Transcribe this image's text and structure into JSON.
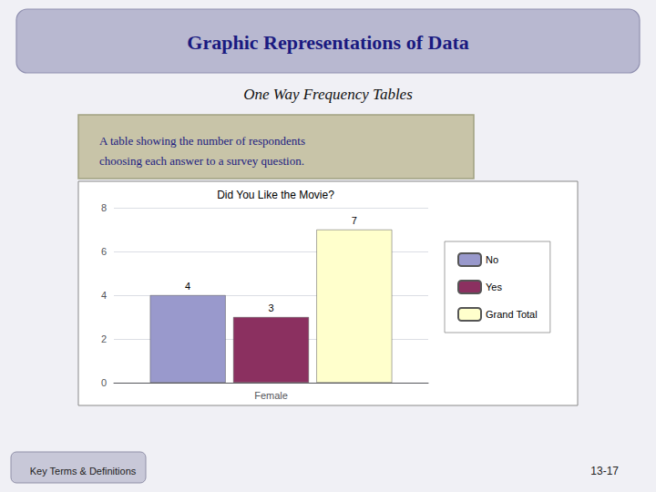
{
  "chart_data": {
    "type": "bar",
    "title": "Graphic Representations of Data",
    "subtitle": "One Way Frequency Tables",
    "annotations": [
      "Did You Like the Movie?",
      "A table showing the number of respondents\nchoosing each answer to a survey question.",
      "Key Terms & Definitions",
      "13-17"
    ],
    "categories": [
      "Female"
    ],
    "series": [
      {
        "name": "No",
        "color": "#9999cc",
        "values": [
          4
        ]
      },
      {
        "name": "Yes",
        "color": "#8b3060",
        "values": [
          3
        ]
      },
      {
        "name": "Grand Total",
        "color": "#ffffcc",
        "values": [
          7
        ]
      }
    ],
    "ylim": [
      0,
      8
    ],
    "yticks": [
      0,
      2,
      4,
      6,
      8
    ],
    "grid": true,
    "legend": "right",
    "data_labels": true
  }
}
